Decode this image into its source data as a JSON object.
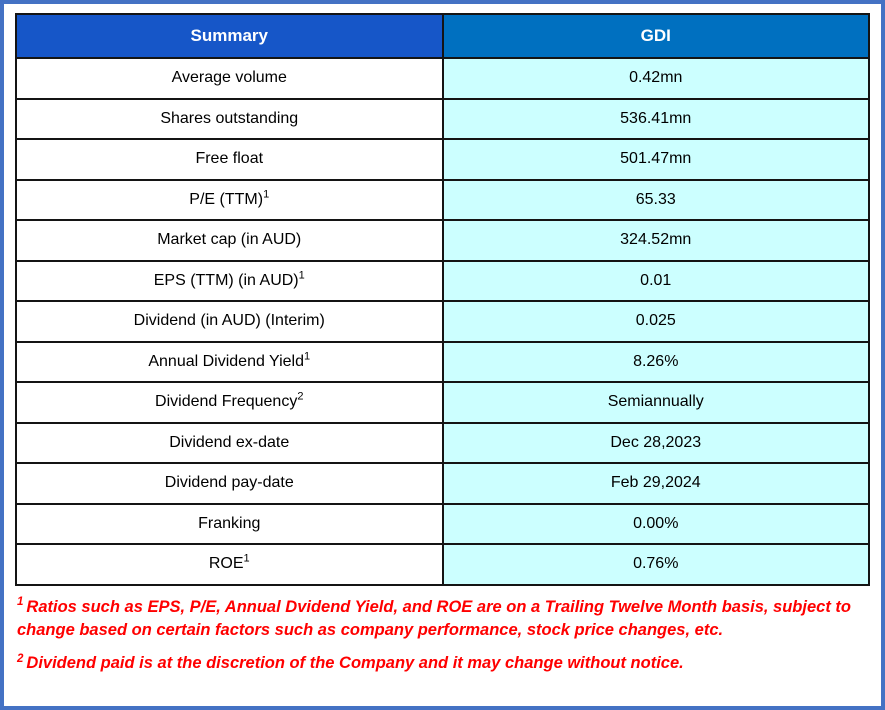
{
  "header": {
    "summary": "Summary",
    "company": "GDI"
  },
  "rows": [
    {
      "label": "Average volume",
      "sup": "",
      "value": "0.42mn"
    },
    {
      "label": "Shares outstanding",
      "sup": "",
      "value": "536.41mn"
    },
    {
      "label": "Free float",
      "sup": "",
      "value": "501.47mn"
    },
    {
      "label": "P/E (TTM)",
      "sup": "1",
      "value": "65.33"
    },
    {
      "label": "Market cap (in AUD)",
      "sup": "",
      "value": "324.52mn"
    },
    {
      "label": "EPS (TTM) (in AUD)",
      "sup": "1",
      "value": "0.01"
    },
    {
      "label": "Dividend (in AUD) (Interim)",
      "sup": "",
      "value": "0.025"
    },
    {
      "label": "Annual Dividend Yield",
      "sup": "1",
      "value": "8.26%"
    },
    {
      "label": "Dividend Frequency",
      "sup": "2",
      "value": "Semiannually"
    },
    {
      "label": "Dividend ex-date",
      "sup": "",
      "value": "Dec 28,2023"
    },
    {
      "label": "Dividend pay-date",
      "sup": "",
      "value": "Feb 29,2024"
    },
    {
      "label": "Franking",
      "sup": "",
      "value": "0.00%"
    },
    {
      "label": "ROE",
      "sup": "1",
      "value": "0.76%"
    }
  ],
  "footnotes": [
    {
      "sup": "1",
      "text": "Ratios such as EPS, P/E, Annual Dvidend Yield, and ROE are on a Trailing Twelve Month basis, subject to change based on certain factors such as company performance, stock price changes, etc."
    },
    {
      "sup": "2",
      "text": "Dividend paid is at the discretion of the Company and it may change without notice."
    }
  ],
  "colors": {
    "frame_border": "#4472C4",
    "summary_header_bg": "#1656C8",
    "gdi_header_bg": "#0070C0",
    "value_cell_bg": "#CCFFFF",
    "footnote_color": "#FF0000"
  }
}
